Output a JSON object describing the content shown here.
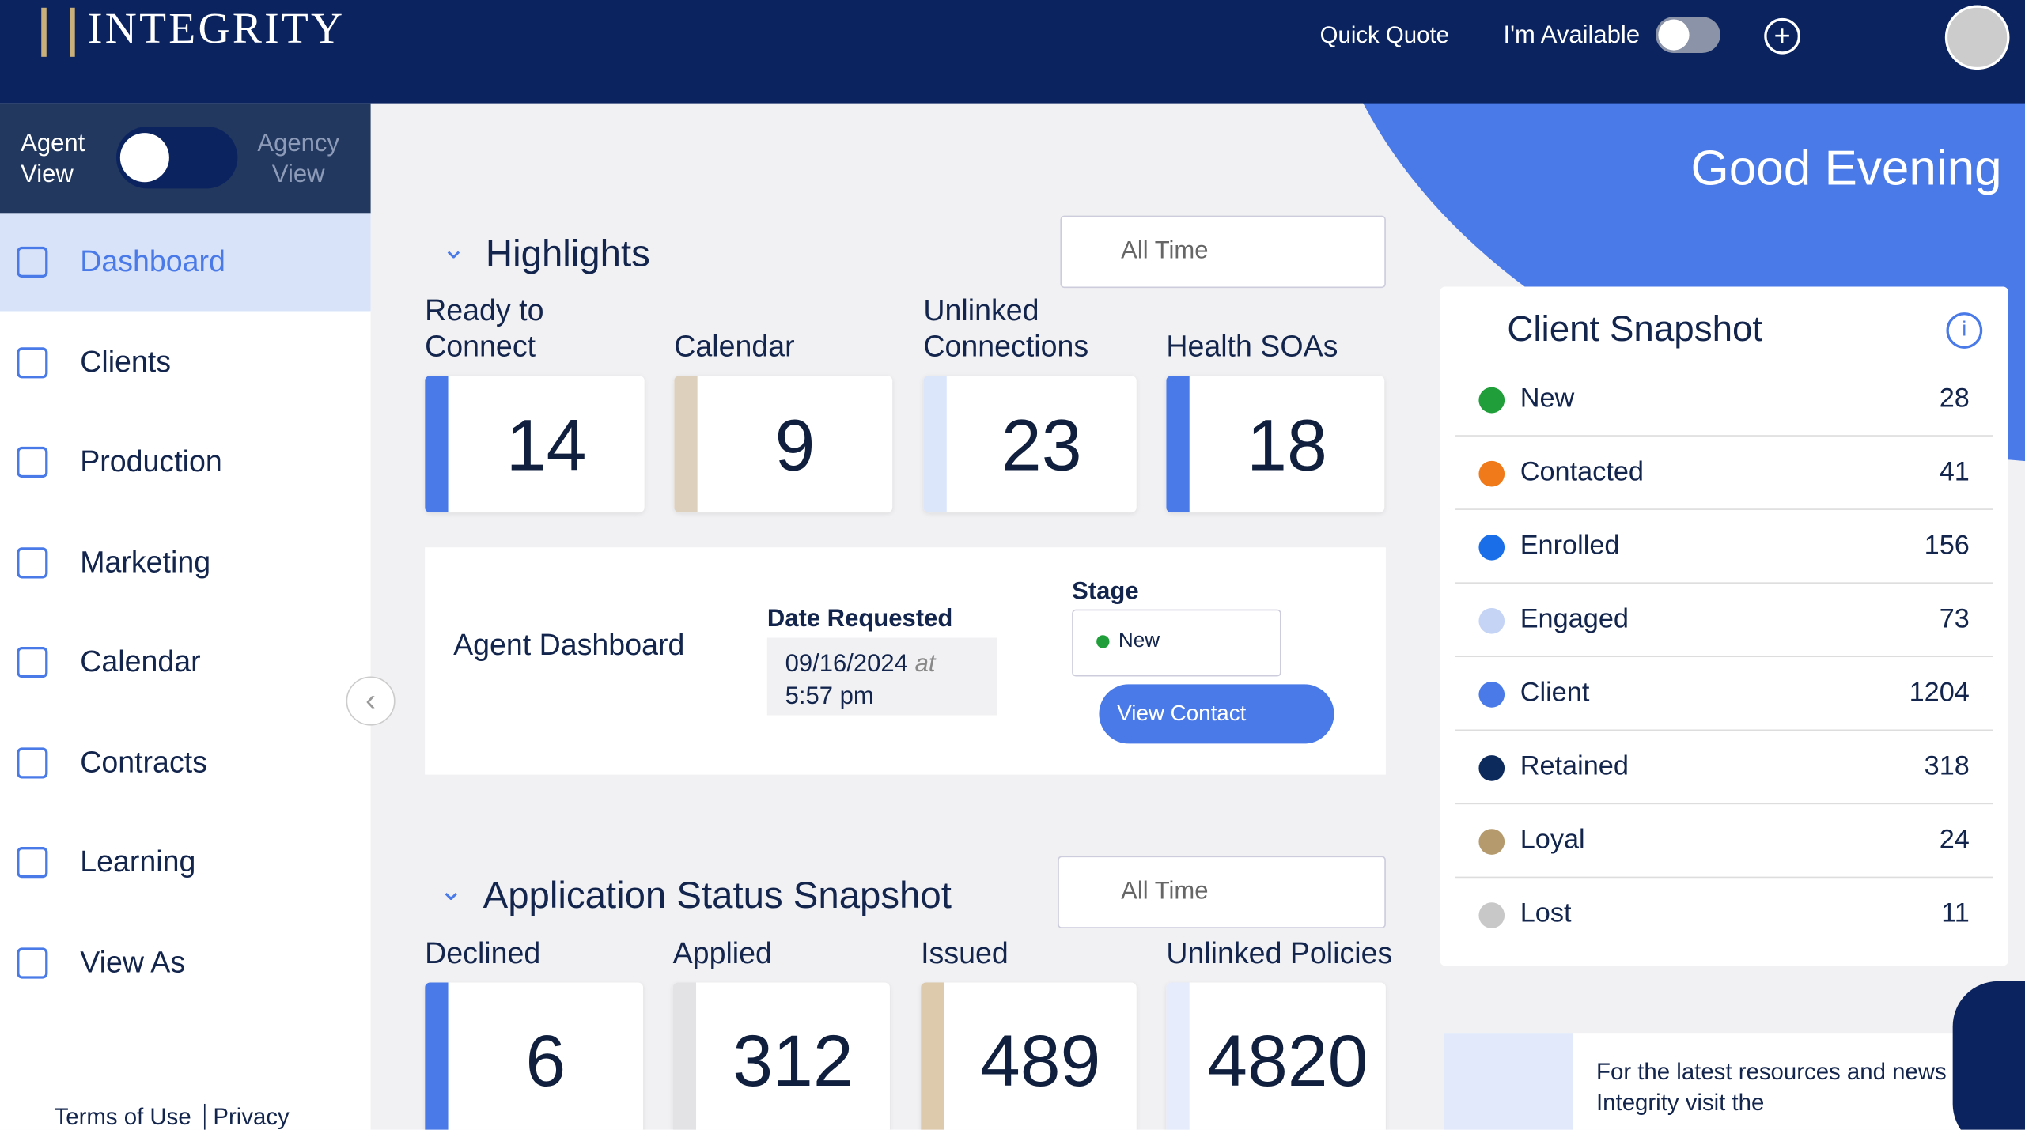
{
  "header": {
    "logo": "INTEGRITY",
    "nav": [
      "Quick Quote",
      "I'm Available"
    ]
  },
  "sidebar": {
    "toggle": [
      "Agent View",
      "Agency View"
    ],
    "items": [
      "Dashboard",
      "Clients",
      "Production",
      "Marketing",
      "Calendar",
      "Contracts",
      "Learning",
      "View As"
    ],
    "active": 0,
    "footer": [
      "Terms of Use",
      "Privacy"
    ]
  },
  "greeting": "Good Evening",
  "highlights": {
    "title": "Highlights",
    "filter": "All Time",
    "cards": [
      {
        "label": "Ready to Connect",
        "value": 14,
        "color": "#4a7ae8"
      },
      {
        "label": "Calendar",
        "value": 9,
        "color": "#ddd0bd"
      },
      {
        "label": "Unlinked Connections",
        "value": 23,
        "color": "#dbe6fb"
      },
      {
        "label": "Health SOAs",
        "value": 18,
        "color": "#4a7ae8"
      }
    ],
    "detail": {
      "name": "Agent Dashboard",
      "date_label": "Date Requested",
      "date": "09/16/2024",
      "at": "at",
      "time": "5:57 pm",
      "stage_label": "Stage",
      "stage": "New",
      "button": "View Contact"
    }
  },
  "application": {
    "title": "Application Status Snapshot",
    "filter": "All Time",
    "cards": [
      {
        "label": "Declined",
        "value": 6,
        "color": "#4a7ae8"
      },
      {
        "label": "Applied",
        "value": 312,
        "color": "#e3e3e5"
      },
      {
        "label": "Issued",
        "value": 489,
        "color": "#ddc9ab"
      },
      {
        "label": "Unlinked Policies",
        "value": 4820,
        "color": "#e6ecfb"
      }
    ]
  },
  "client_snapshot": {
    "title": "Client Snapshot",
    "items": [
      {
        "name": "New",
        "count": 28,
        "color": "#1f9e3a"
      },
      {
        "name": "Contacted",
        "count": 41,
        "color": "#f07a1a"
      },
      {
        "name": "Enrolled",
        "count": 156,
        "color": "#1a6fe8"
      },
      {
        "name": "Engaged",
        "count": 73,
        "color": "#c5d3f5"
      },
      {
        "name": "Client",
        "count": 1204,
        "color": "#4a7ae8"
      },
      {
        "name": "Retained",
        "count": 318,
        "color": "#0d2a5c"
      },
      {
        "name": "Loyal",
        "count": 24,
        "color": "#b59a6e"
      },
      {
        "name": "Lost",
        "count": 11,
        "color": "#c8c8c8"
      }
    ]
  },
  "news": {
    "text": "For the latest resources and news Integrity visit the"
  }
}
